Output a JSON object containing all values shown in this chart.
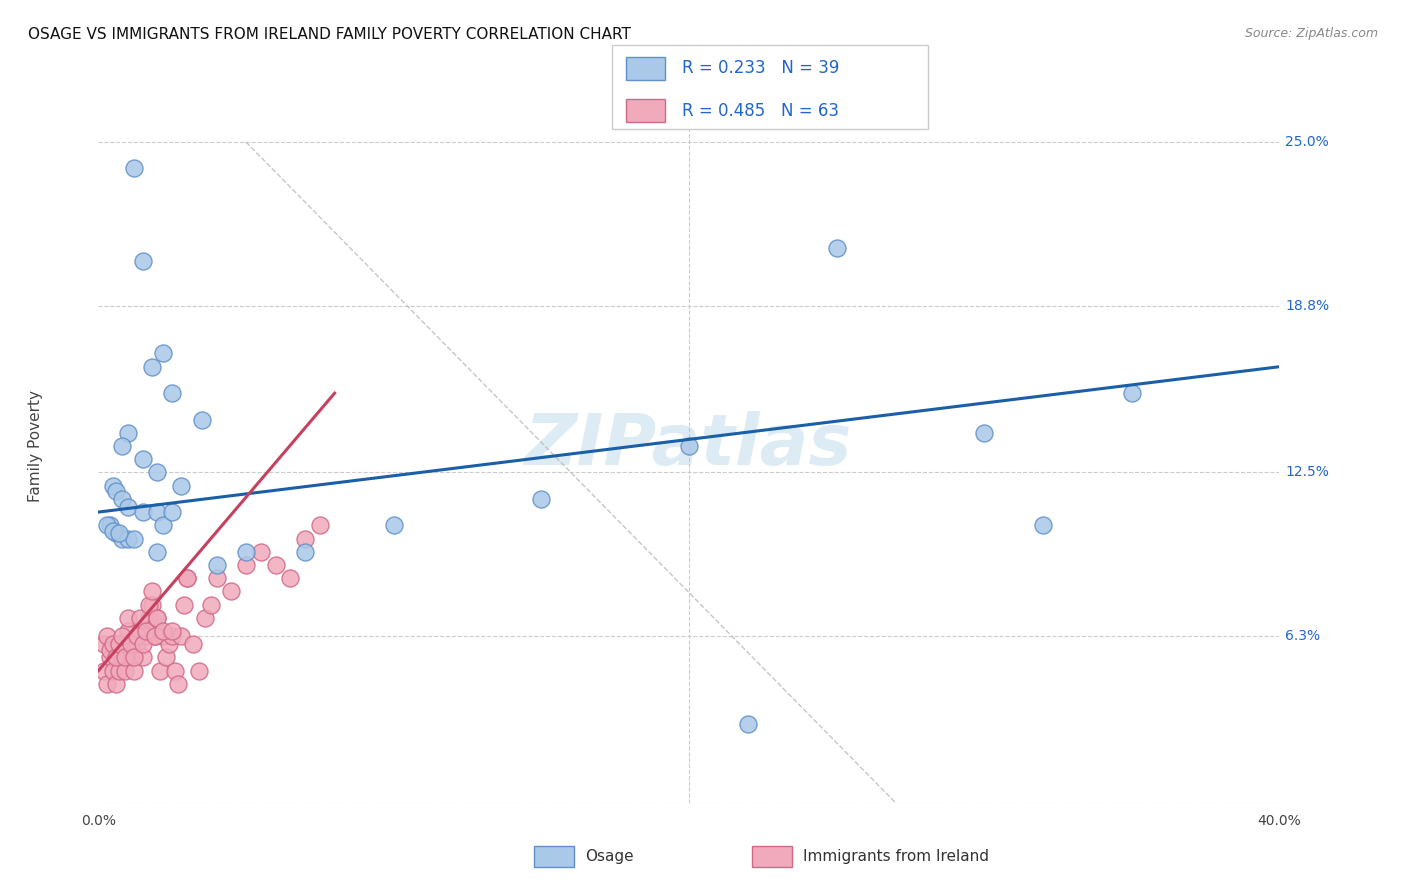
{
  "title": "OSAGE VS IMMIGRANTS FROM IRELAND FAMILY POVERTY CORRELATION CHART",
  "source": "Source: ZipAtlas.com",
  "ylabel": "Family Poverty",
  "xlim": [
    0,
    40
  ],
  "ylim": [
    0,
    27
  ],
  "ytick_vals": [
    0,
    6.3,
    12.5,
    18.8,
    25.0
  ],
  "ytick_labels": [
    "",
    "6.3%",
    "12.5%",
    "18.8%",
    "25.0%"
  ],
  "watermark": "ZIPatlas",
  "series1_label": "Osage",
  "series2_label": "Immigrants from Ireland",
  "series1_color": "#aac8e8",
  "series2_color": "#f0aabb",
  "series1_edge": "#6090c8",
  "series2_edge": "#d06888",
  "line1_color": "#1a5fa8",
  "line2_color": "#c84060",
  "legend_text_color": "#2266cc",
  "osage_x": [
    1.2,
    1.5,
    2.2,
    1.8,
    2.5,
    3.5,
    1.0,
    0.8,
    1.5,
    2.0,
    2.8,
    0.5,
    0.6,
    0.8,
    1.0,
    1.5,
    2.0,
    2.2,
    2.5,
    0.4,
    0.6,
    0.8,
    1.0,
    1.2,
    2.0,
    4.0,
    5.0,
    7.0,
    15.0,
    20.0,
    25.0,
    30.0,
    32.0,
    35.0,
    22.0,
    0.3,
    0.5,
    0.7,
    10.0
  ],
  "osage_y": [
    24.0,
    20.5,
    17.0,
    16.5,
    15.5,
    14.5,
    14.0,
    13.5,
    13.0,
    12.5,
    12.0,
    12.0,
    11.8,
    11.5,
    11.2,
    11.0,
    11.0,
    10.5,
    11.0,
    10.5,
    10.2,
    10.0,
    10.0,
    10.0,
    9.5,
    9.0,
    9.5,
    9.5,
    11.5,
    13.5,
    21.0,
    14.0,
    10.5,
    15.5,
    3.0,
    10.5,
    10.3,
    10.2,
    10.5
  ],
  "ireland_x": [
    0.2,
    0.3,
    0.4,
    0.5,
    0.6,
    0.7,
    0.8,
    0.9,
    1.0,
    1.1,
    1.2,
    1.3,
    1.4,
    1.5,
    1.6,
    1.7,
    1.8,
    1.9,
    2.0,
    2.1,
    2.2,
    2.3,
    2.4,
    2.5,
    2.6,
    2.7,
    2.8,
    2.9,
    3.0,
    3.2,
    3.4,
    3.6,
    3.8,
    4.0,
    4.5,
    5.0,
    5.5,
    6.0,
    6.5,
    7.0,
    7.5,
    0.2,
    0.3,
    0.4,
    0.5,
    0.6,
    0.7,
    0.8,
    0.9,
    1.0,
    1.1,
    1.2,
    1.3,
    1.4,
    1.5,
    1.6,
    1.7,
    1.8,
    1.9,
    2.0,
    2.2,
    2.5,
    3.0
  ],
  "ireland_y": [
    5.0,
    4.5,
    5.5,
    5.0,
    4.5,
    5.0,
    5.5,
    5.0,
    6.5,
    5.5,
    5.0,
    6.0,
    6.5,
    5.5,
    6.3,
    7.0,
    7.5,
    6.3,
    7.0,
    5.0,
    6.3,
    5.5,
    6.0,
    6.3,
    5.0,
    4.5,
    6.3,
    7.5,
    8.5,
    6.0,
    5.0,
    7.0,
    7.5,
    8.5,
    8.0,
    9.0,
    9.5,
    9.0,
    8.5,
    10.0,
    10.5,
    6.0,
    6.3,
    5.8,
    6.0,
    5.5,
    6.0,
    6.3,
    5.5,
    7.0,
    6.0,
    5.5,
    6.3,
    7.0,
    6.0,
    6.5,
    7.5,
    8.0,
    6.3,
    7.0,
    6.5,
    6.5,
    8.5
  ]
}
